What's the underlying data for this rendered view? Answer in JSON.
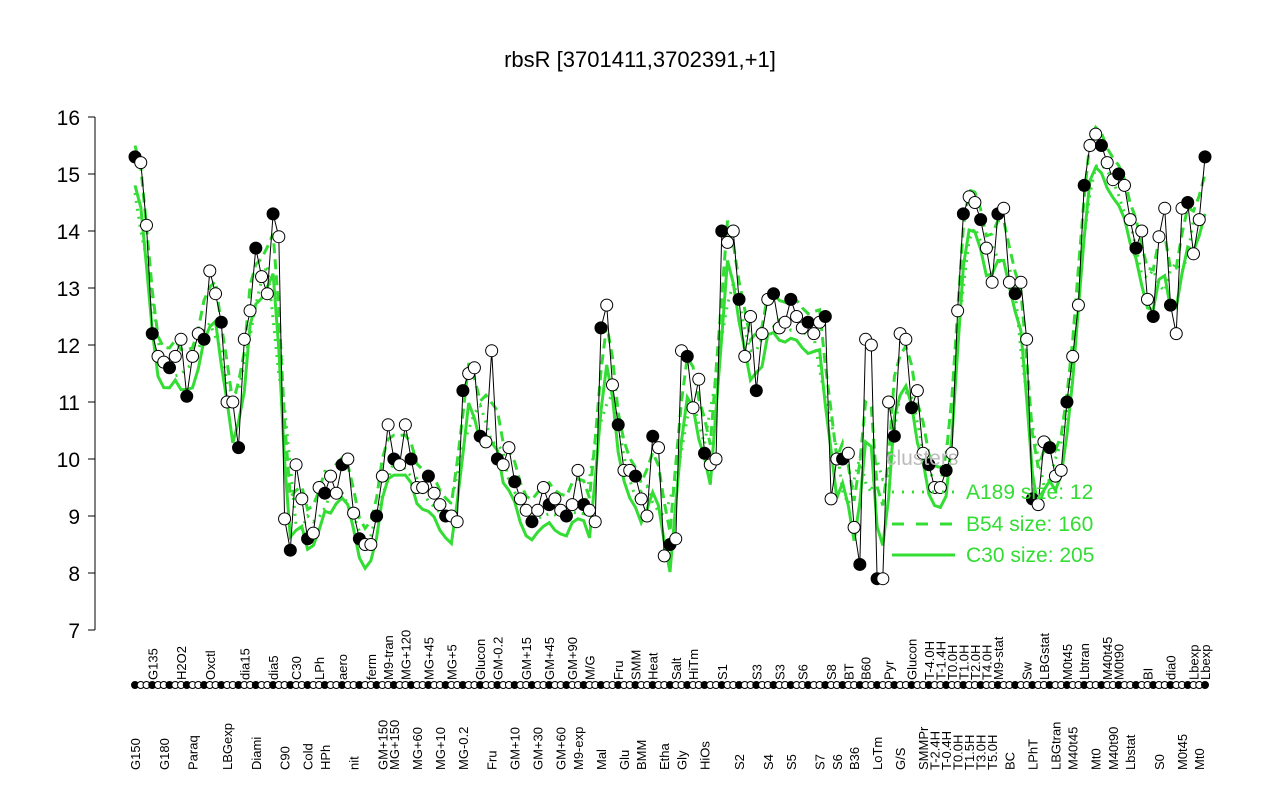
{
  "chart_data": {
    "type": "line",
    "title": "rbsR [3701411,3702391,+1]",
    "ylim": [
      7,
      16
    ],
    "yticks": [
      7,
      8,
      9,
      10,
      11,
      12,
      13,
      14,
      15,
      16
    ],
    "grid": false,
    "legend": {
      "title": "clusters",
      "placement": "right",
      "entries": [
        {
          "name": "A189 size: 12",
          "style": "dotted"
        },
        {
          "name": "B54 size: 160",
          "style": "dashed"
        },
        {
          "name": "C30 size: 205",
          "style": "solid"
        }
      ]
    },
    "colors": {
      "expression": "#000000",
      "clusters": "#33dd33",
      "legend_title": "#bbbbbb"
    },
    "points": [
      [
        "G150",
        15.3
      ],
      [
        "",
        15.2
      ],
      [
        "",
        14.1
      ],
      [
        "G135",
        12.2
      ],
      [
        "",
        11.8
      ],
      [
        "G180",
        11.7
      ],
      [
        "",
        11.6
      ],
      [
        "",
        11.8
      ],
      [
        "H2O2",
        12.1
      ],
      [
        "",
        11.1
      ],
      [
        "Paraq",
        11.8
      ],
      [
        "",
        12.2
      ],
      [
        "",
        12.1
      ],
      [
        "Oxctl",
        13.3
      ],
      [
        "",
        12.9
      ],
      [
        "",
        12.4
      ],
      [
        "LBGexp",
        11.0
      ],
      [
        "",
        11.0
      ],
      [
        "",
        10.2
      ],
      [
        "dia15",
        12.1
      ],
      [
        "",
        12.6
      ],
      [
        "Diami",
        13.7
      ],
      [
        "",
        13.2
      ],
      [
        "",
        12.9
      ],
      [
        "dia5",
        14.3
      ],
      [
        "",
        13.9
      ],
      [
        "C90",
        8.95
      ],
      [
        "",
        8.4
      ],
      [
        "C30",
        9.9
      ],
      [
        "",
        9.3
      ],
      [
        "Cold",
        8.6
      ],
      [
        "",
        8.7
      ],
      [
        "LPh",
        9.5
      ],
      [
        "HPh",
        9.4
      ],
      [
        "",
        9.7
      ],
      [
        "",
        9.4
      ],
      [
        "aero",
        9.9
      ],
      [
        "",
        10.0
      ],
      [
        "nit",
        9.05
      ],
      [
        "",
        8.6
      ],
      [
        "",
        8.5
      ],
      [
        "ferm",
        8.5
      ],
      [
        "",
        9.0
      ],
      [
        "GM+150",
        9.7
      ],
      [
        "M9-tran",
        10.6
      ],
      [
        "MG+150",
        10.0
      ],
      [
        "",
        9.9
      ],
      [
        "MG+120",
        10.6
      ],
      [
        "",
        10.0
      ],
      [
        "MG+60",
        9.5
      ],
      [
        "",
        9.5
      ],
      [
        "MG+45",
        9.7
      ],
      [
        "",
        9.4
      ],
      [
        "MG+10",
        9.2
      ],
      [
        "",
        9.0
      ],
      [
        "MG+5",
        9.0
      ],
      [
        "",
        8.9
      ],
      [
        "MG-0.2",
        11.2
      ],
      [
        "",
        11.5
      ],
      [
        "",
        11.6
      ],
      [
        "Glucon",
        10.4
      ],
      [
        "",
        10.3
      ],
      [
        "Fru",
        11.9
      ],
      [
        "GM-0.2",
        10.0
      ],
      [
        "",
        9.9
      ],
      [
        "",
        10.2
      ],
      [
        "GM+10",
        9.6
      ],
      [
        "",
        9.3
      ],
      [
        "GM+15",
        9.1
      ],
      [
        "",
        8.9
      ],
      [
        "GM+30",
        9.1
      ],
      [
        "",
        9.5
      ],
      [
        "GM+45",
        9.2
      ],
      [
        "",
        9.3
      ],
      [
        "GM+60",
        9.1
      ],
      [
        "",
        9.0
      ],
      [
        "GM+90",
        9.2
      ],
      [
        "M9-exp",
        9.8
      ],
      [
        "",
        9.2
      ],
      [
        "M/G",
        9.1
      ],
      [
        "",
        8.9
      ],
      [
        "Mal",
        12.3
      ],
      [
        "",
        12.7
      ],
      [
        "",
        11.3
      ],
      [
        "Fru",
        10.6
      ],
      [
        "Glu",
        9.8
      ],
      [
        "",
        9.8
      ],
      [
        "SMM",
        9.7
      ],
      [
        "BMM",
        9.3
      ],
      [
        "",
        9.0
      ],
      [
        "Heat",
        10.4
      ],
      [
        "",
        10.2
      ],
      [
        "Etha",
        8.3
      ],
      [
        "",
        8.5
      ],
      [
        "Salt",
        8.6
      ],
      [
        "Gly",
        11.9
      ],
      [
        "",
        11.8
      ],
      [
        "HiTm",
        10.9
      ],
      [
        "",
        11.4
      ],
      [
        "HiOs",
        10.1
      ],
      [
        "",
        9.9
      ],
      [
        "",
        10.0
      ],
      [
        "S1",
        14.0
      ],
      [
        "",
        13.8
      ],
      [
        "",
        14.0
      ],
      [
        "S2",
        12.8
      ],
      [
        "",
        11.8
      ],
      [
        "",
        12.5
      ],
      [
        "S3",
        11.2
      ],
      [
        "",
        12.2
      ],
      [
        "S4",
        12.8
      ],
      [
        "",
        12.9
      ],
      [
        "S3",
        12.3
      ],
      [
        "",
        12.4
      ],
      [
        "S5",
        12.8
      ],
      [
        "",
        12.5
      ],
      [
        "S6",
        12.3
      ],
      [
        "",
        12.4
      ],
      [
        "",
        12.2
      ],
      [
        "S7",
        12.4
      ],
      [
        "",
        12.5
      ],
      [
        "S8",
        9.3
      ],
      [
        "S6",
        10.0
      ],
      [
        "",
        10.0
      ],
      [
        "BT",
        10.1
      ],
      [
        "B36",
        8.8
      ],
      [
        "",
        8.15
      ],
      [
        "B60",
        12.1
      ],
      [
        "",
        12.0
      ],
      [
        "LoTm",
        7.9
      ],
      [
        "",
        7.9
      ],
      [
        "Pyr",
        11.0
      ],
      [
        "",
        10.4
      ],
      [
        "G/S",
        12.2
      ],
      [
        "",
        12.1
      ],
      [
        "Glucon",
        10.9
      ],
      [
        "",
        11.2
      ],
      [
        "SMMPr",
        10.1
      ],
      [
        "T-4.0H",
        9.9
      ],
      [
        "T-2.4H",
        9.5
      ],
      [
        "T-1.4H",
        9.5
      ],
      [
        "T-0.4H",
        9.8
      ],
      [
        "T0.0H",
        10.1
      ],
      [
        "T0.0H",
        12.6
      ],
      [
        "T1.0H",
        14.3
      ],
      [
        "T1.5H",
        14.6
      ],
      [
        "T2.0H",
        14.5
      ],
      [
        "T3.0H",
        14.2
      ],
      [
        "T4.0H",
        13.7
      ],
      [
        "T5.0H",
        13.1
      ],
      [
        "M9-stat",
        14.3
      ],
      [
        "",
        14.4
      ],
      [
        "BC",
        13.1
      ],
      [
        "",
        12.9
      ],
      [
        "",
        13.1
      ],
      [
        "Sw",
        12.1
      ],
      [
        "LPhT",
        9.3
      ],
      [
        "",
        9.2
      ],
      [
        "LBGstat",
        10.3
      ],
      [
        "",
        10.2
      ],
      [
        "LBGtran",
        9.7
      ],
      [
        "",
        9.8
      ],
      [
        "M0t45",
        11.0
      ],
      [
        "M40t45",
        11.8
      ],
      [
        "",
        12.7
      ],
      [
        "Lbtran",
        14.8
      ],
      [
        "",
        15.5
      ],
      [
        "Mt0",
        15.7
      ],
      [
        "",
        15.5
      ],
      [
        "M40t45",
        15.2
      ],
      [
        "M40t90",
        14.9
      ],
      [
        "M0t90",
        15.0
      ],
      [
        "",
        14.8
      ],
      [
        "Lbstat",
        14.2
      ],
      [
        "",
        13.7
      ],
      [
        "",
        14.0
      ],
      [
        "BI",
        12.8
      ],
      [
        "",
        12.5
      ],
      [
        "S0",
        13.9
      ],
      [
        "",
        14.4
      ],
      [
        "dia0",
        12.7
      ],
      [
        "",
        12.2
      ],
      [
        "M0t45",
        14.4
      ],
      [
        "",
        14.5
      ],
      [
        "Lbexp",
        13.6
      ],
      [
        "Mt0",
        14.2
      ],
      [
        "Lbexp",
        15.3
      ]
    ]
  }
}
